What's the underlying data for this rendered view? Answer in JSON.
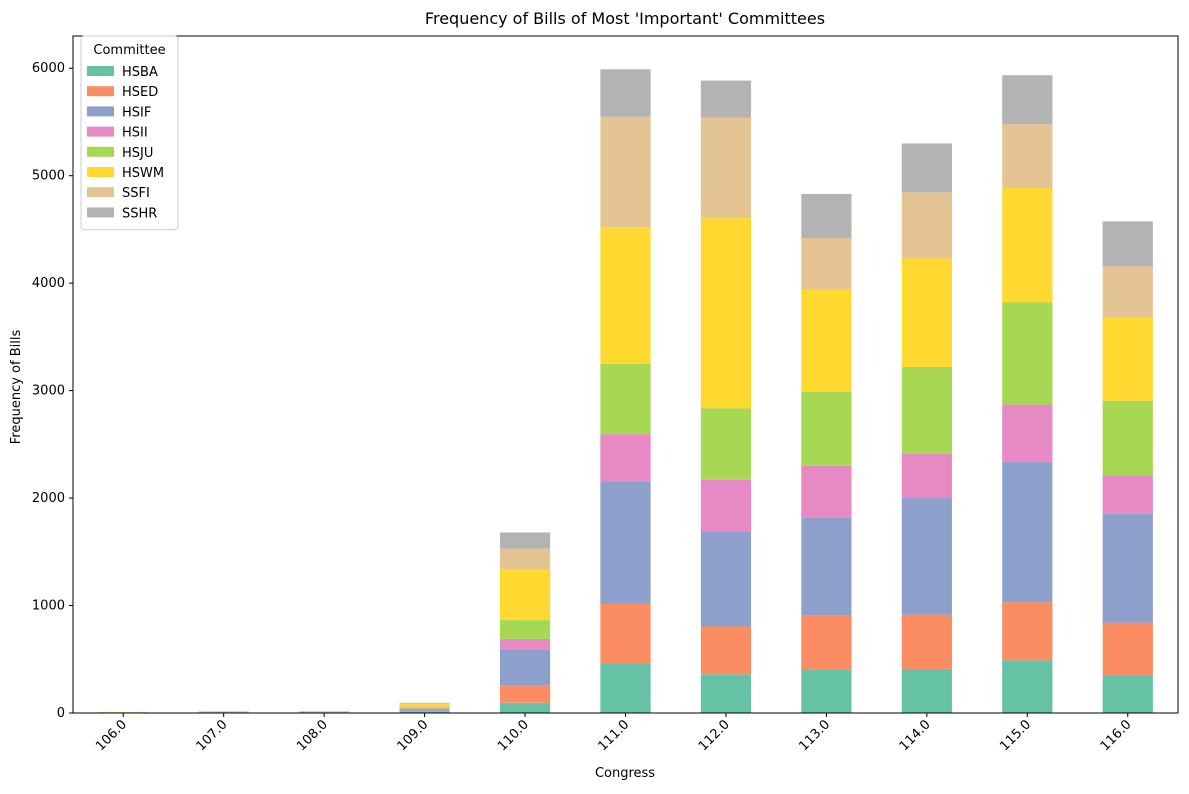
{
  "chart_data": {
    "type": "bar",
    "stacked": true,
    "title": "Frequency of Bills of Most 'Important' Committees",
    "xlabel": "Congress",
    "ylabel": "Frequency of Bills",
    "ylim": [
      0,
      6300
    ],
    "yticks": [
      0,
      1000,
      2000,
      3000,
      4000,
      5000,
      6000
    ],
    "grid": false,
    "legend": {
      "title": "Committee",
      "position": "upper-left"
    },
    "categories": [
      "106.0",
      "107.0",
      "108.0",
      "109.0",
      "110.0",
      "111.0",
      "112.0",
      "113.0",
      "114.0",
      "115.0",
      "116.0"
    ],
    "series": [
      {
        "name": "HSBA",
        "color": "#66c2a5",
        "values": [
          1,
          3,
          3,
          10,
          95,
          460,
          360,
          400,
          410,
          490,
          350
        ]
      },
      {
        "name": "HSED",
        "color": "#fc8d62",
        "values": [
          3,
          5,
          5,
          10,
          165,
          555,
          445,
          505,
          505,
          540,
          490
        ]
      },
      {
        "name": "HSIF",
        "color": "#8da0cb",
        "values": [
          1,
          2,
          2,
          20,
          330,
          1135,
          885,
          910,
          1085,
          1305,
          1015
        ]
      },
      {
        "name": "HSII",
        "color": "#e78ac3",
        "values": [
          0,
          1,
          1,
          5,
          100,
          445,
          480,
          485,
          410,
          535,
          355
        ]
      },
      {
        "name": "HSJU",
        "color": "#a6d854",
        "values": [
          1,
          2,
          2,
          10,
          175,
          655,
          665,
          690,
          810,
          950,
          695
        ]
      },
      {
        "name": "HSWM",
        "color": "#ffd92f",
        "values": [
          2,
          3,
          3,
          25,
          475,
          1270,
          1770,
          950,
          1010,
          1065,
          775
        ]
      },
      {
        "name": "SSFI",
        "color": "#e5c494",
        "values": [
          1,
          2,
          2,
          10,
          190,
          1030,
          935,
          480,
          615,
          595,
          475
        ]
      },
      {
        "name": "SSHR",
        "color": "#b3b3b3",
        "values": [
          1,
          1,
          1,
          5,
          150,
          440,
          345,
          410,
          455,
          455,
          420
        ]
      }
    ]
  }
}
